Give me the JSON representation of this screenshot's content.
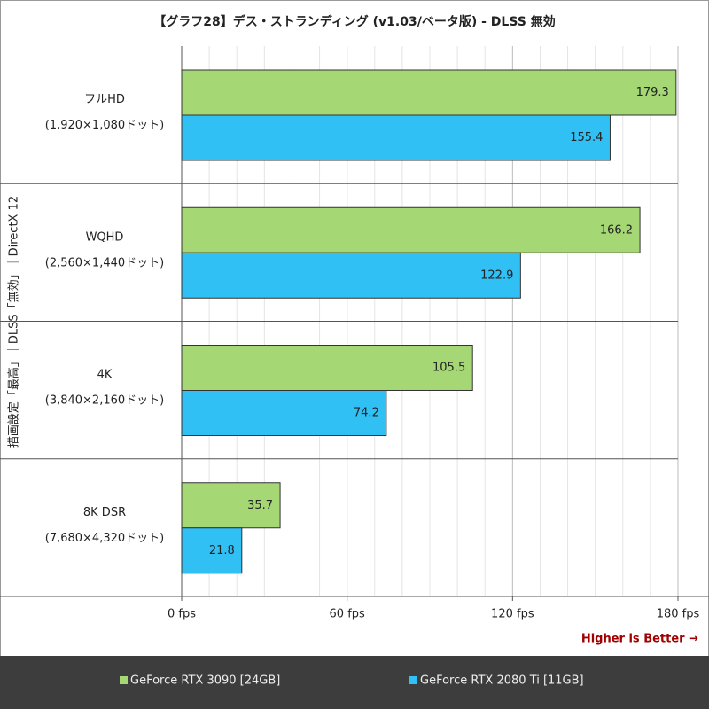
{
  "chart_data": {
    "type": "hbar",
    "title": "【グラフ28】デス・ストランディング (v1.03/ベータ版) - DLSS 無効",
    "y_label": "描画設定「最高」｜DLSS「無効」｜DirectX 12",
    "categories": [
      "フルHD",
      "WQHD",
      "4K",
      "8K DSR"
    ],
    "category_sublabels": [
      "(1,920×1,080ドット)",
      "(2,560×1,440ドット)",
      "(3,840×2,160ドット)",
      "(7,680×4,320ドット)"
    ],
    "series": [
      {
        "name": "GeForce RTX 3090 [24GB]",
        "color": "#a5d774",
        "values": [
          179.3,
          166.2,
          105.5,
          35.7
        ]
      },
      {
        "name": "GeForce RTX 2080 Ti [11GB]",
        "color": "#31c0f4",
        "values": [
          155.4,
          122.9,
          74.2,
          21.8
        ]
      }
    ],
    "xlim": [
      0,
      180
    ],
    "xticks": [
      {
        "value": 0,
        "label": "0 fps"
      },
      {
        "value": 60,
        "label": "60 fps"
      },
      {
        "value": 120,
        "label": "120 fps"
      },
      {
        "value": 180,
        "label": "180 fps"
      }
    ],
    "minor_xticks": [
      10,
      20,
      30,
      40,
      50,
      70,
      80,
      90,
      100,
      110,
      130,
      140,
      150,
      160,
      170
    ],
    "grid": true,
    "annotation": "Higher is Better →",
    "legend": "bottom"
  }
}
